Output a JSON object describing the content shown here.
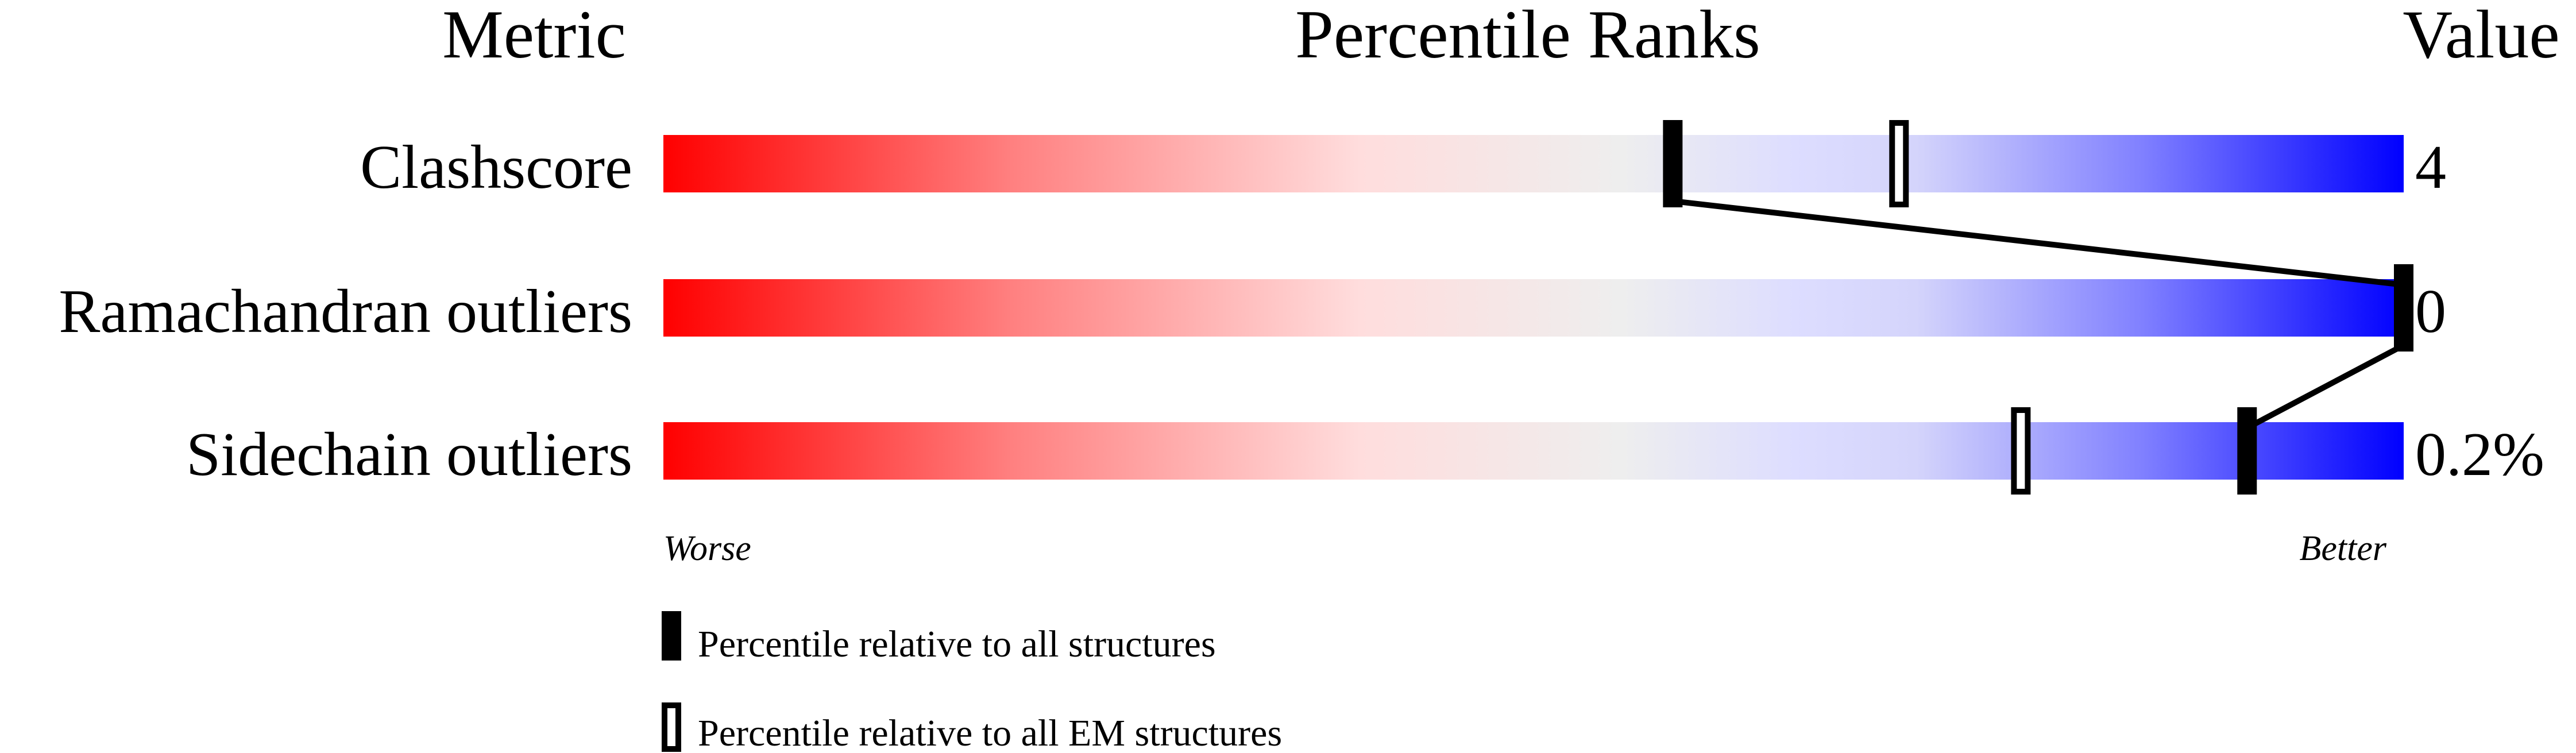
{
  "chart_data": {
    "type": "percentile-slider",
    "headers": {
      "metric": "Metric",
      "ranks": "Percentile Ranks",
      "value": "Value"
    },
    "xlim": [
      0,
      100
    ],
    "gradient_colors": {
      "worse": "#ff0000",
      "mid_red": "#ffdddd",
      "middle": "#eeeeee",
      "mid_blue": "#ddddff",
      "better": "#0000ff"
    },
    "rows": [
      {
        "metric": "Clashscore",
        "value": "4",
        "percentile_all": 58,
        "percentile_em": 71
      },
      {
        "metric": "Ramachandran outliers",
        "value": "0",
        "percentile_all": 100,
        "percentile_em": null
      },
      {
        "metric": "Sidechain outliers",
        "value": "0.2%",
        "percentile_all": 91,
        "percentile_em": 78
      }
    ],
    "axis": {
      "left": "Worse",
      "right": "Better"
    },
    "legend": {
      "all": "Percentile relative to all structures",
      "em": "Percentile relative to all EM structures"
    }
  }
}
